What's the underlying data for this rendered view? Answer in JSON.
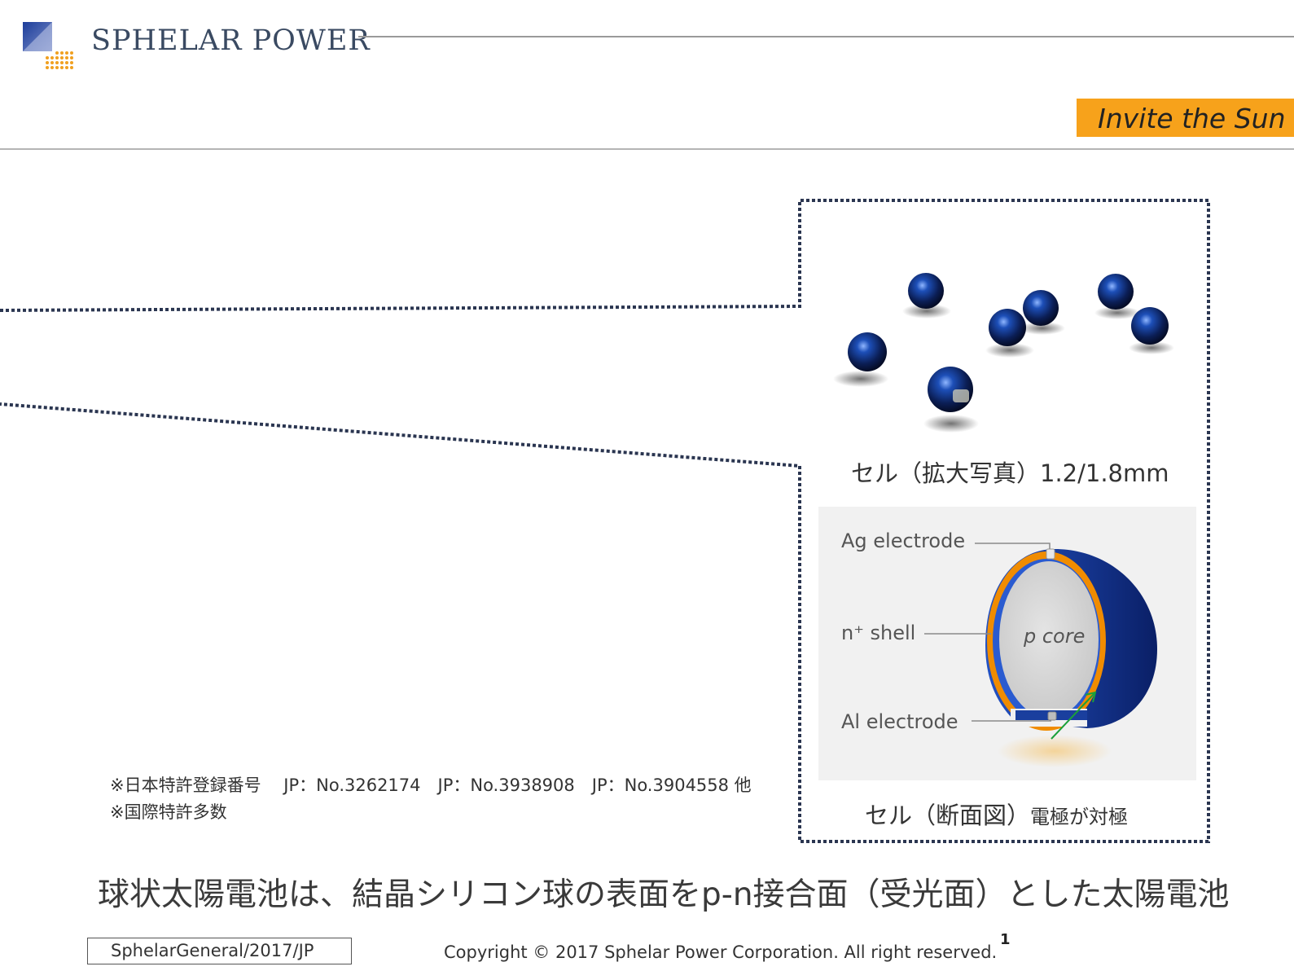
{
  "header": {
    "brand": "SPHELAR POWER",
    "tagline": "Invite the Sun"
  },
  "figure": {
    "photo_caption": "セル（拡大写真）1.2/1.8mm",
    "cross_section": {
      "labels": {
        "ag_electrode": "Ag electrode",
        "n_shell": "n⁺ shell",
        "p_core": "p core",
        "al_electrode": "Al electrode"
      }
    },
    "section_caption_main": "セル（断面図）",
    "section_caption_note": "電極が対極"
  },
  "patent": {
    "line1": "※日本特許登録番号　 JP：No.3262174　JP：No.3938908　JP：No.3904558 他",
    "line2": "※国際特許多数"
  },
  "headline": "球状太陽電池は、結晶シリコン球の表面をp-n接合面（受光面）とした太陽電池",
  "footer": {
    "doc_id": "SphelarGeneral/2017/JP",
    "copyright": "Copyright © 2017 Sphelar Power Corporation. All right reserved.",
    "page_number": "1"
  },
  "colors": {
    "accent": "#f7a21b",
    "brand_text": "#3a4a62",
    "dotted_frame": "#2a3550",
    "shell_orange": "#f08c00",
    "outer_blue": "#1a3f9e"
  }
}
